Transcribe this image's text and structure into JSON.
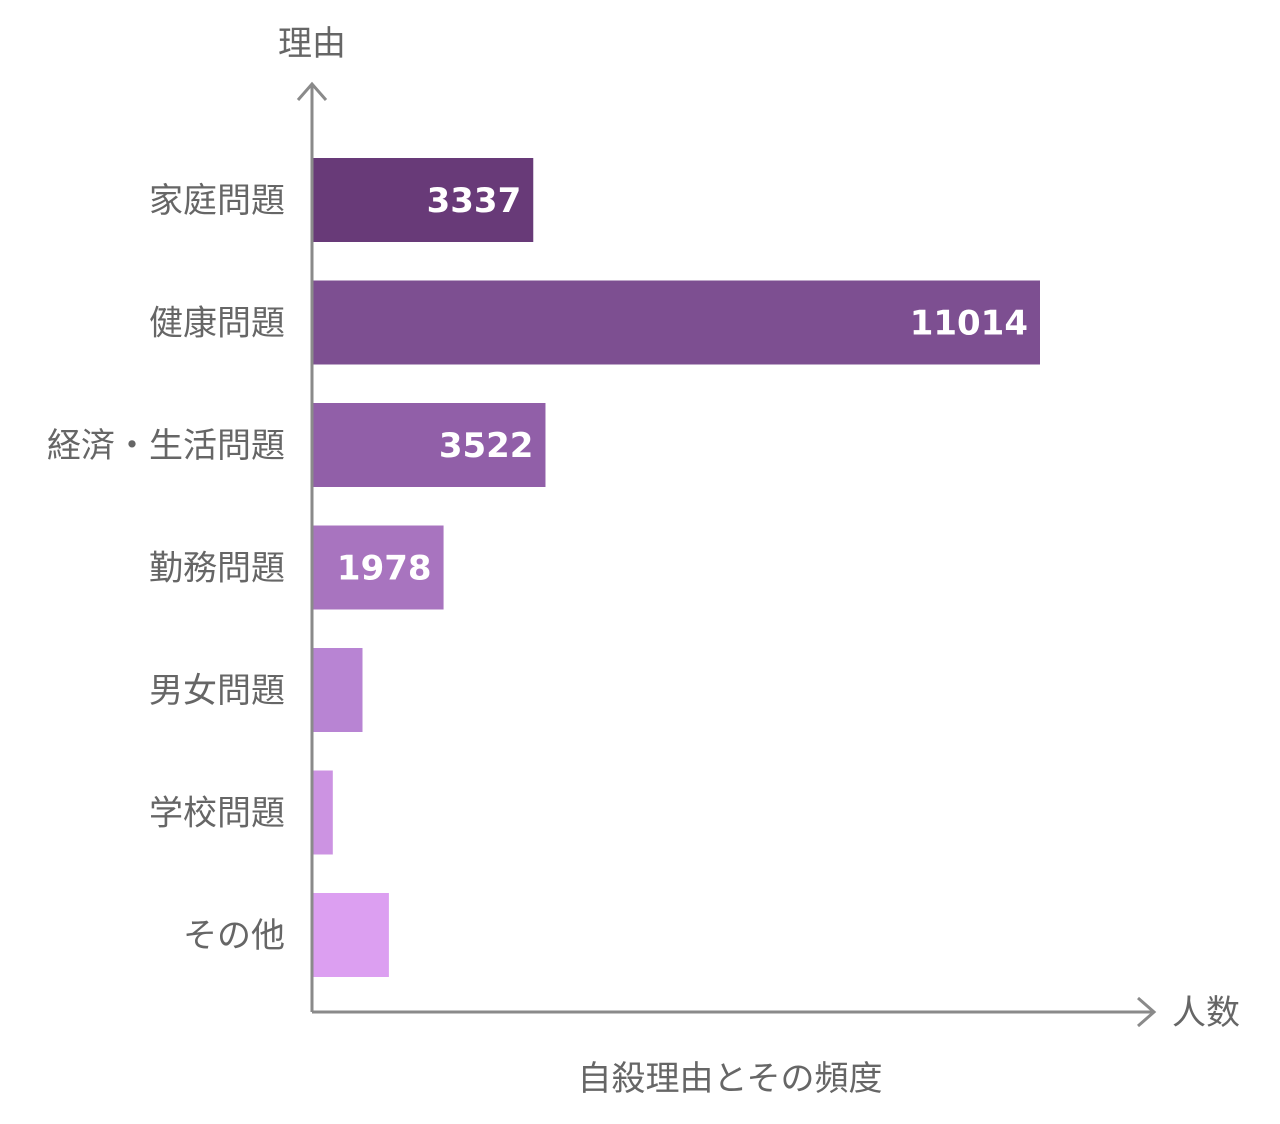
{
  "chart_data": {
    "type": "bar",
    "orientation": "horizontal",
    "title": "自殺理由とその頻度",
    "xlabel": "人数",
    "ylabel": "理由",
    "categories": [
      "家庭問題",
      "健康問題",
      "経済・生活問題",
      "勤務問題",
      "男女問題",
      "学校問題",
      "その他"
    ],
    "values": [
      3337,
      11014,
      3522,
      1978,
      750,
      300,
      1150
    ],
    "data_labels": [
      "3337",
      "11014",
      "3522",
      "1978",
      "",
      "",
      ""
    ],
    "colors": [
      "#683a78",
      "#7d4f91",
      "#915fa8",
      "#a874bf",
      "#b884d3",
      "#cc93e2",
      "#dc9ff1"
    ],
    "xlim": [
      0,
      11014
    ],
    "grid": false,
    "legend": "none"
  }
}
